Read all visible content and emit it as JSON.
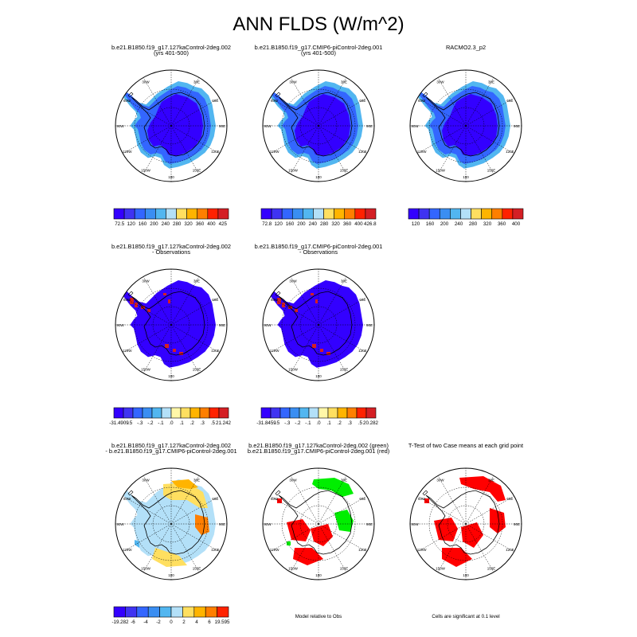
{
  "figure": {
    "title": "ANN FLDS (W/m^2)"
  },
  "colors": {
    "mean_palette": [
      "#3300ff",
      "#3f33f2",
      "#3366ff",
      "#3a8ef2",
      "#52b6f0",
      "#b3e0f8",
      "#ffdf60",
      "#ffb400",
      "#ff7f00",
      "#ff2200",
      "#d41f24"
    ],
    "diff_palette": [
      "#3300ff",
      "#3f33f2",
      "#3366ff",
      "#3a8ef2",
      "#52b6f0",
      "#b3e0f8",
      "#fff7a8",
      "#ffdf60",
      "#ffb400",
      "#ff7f00",
      "#ff2200",
      "#d41f24"
    ],
    "significant_green": "#00ee00",
    "significant_red": "#ff0000",
    "land_outline": "#000000"
  },
  "map_labels": {
    "lon_labels": [
      "30W",
      "30E",
      "60W",
      "60E",
      "90W",
      "90E",
      "120W",
      "120E",
      "150W",
      "150E",
      "180"
    ]
  },
  "chart_data": [
    {
      "type": "heatmap",
      "title": "b.e21.B1850.f19_g17.127kaControl-2deg.002",
      "subtitle": "(yrs 401-500)",
      "colorbar": {
        "ticks": [
          "72.5",
          "120",
          "160",
          "200",
          "240",
          "280",
          "320",
          "360",
          "400",
          "425"
        ]
      },
      "region_colors": [
        "#3300ff",
        "#3366ff",
        "#52b6f0"
      ]
    },
    {
      "type": "heatmap",
      "title": "b.e21.B1850.f19_g17.CMIP6-piControl-2deg.001",
      "subtitle": "(yrs 401-500)",
      "colorbar": {
        "ticks": [
          "72.8",
          "120",
          "160",
          "200",
          "240",
          "280",
          "320",
          "360",
          "400",
          "426.8"
        ]
      },
      "region_colors": [
        "#3300ff",
        "#3366ff",
        "#52b6f0"
      ]
    },
    {
      "type": "heatmap",
      "title": "RACMO2.3_p2",
      "subtitle": "",
      "colorbar": {
        "ticks": [
          "120",
          "160",
          "200",
          "240",
          "280",
          "320",
          "360",
          "400"
        ]
      },
      "region_colors": [
        "#3300ff",
        "#3366ff",
        "#52b6f0"
      ]
    },
    {
      "type": "heatmap",
      "title": "b.e21.B1850.f19_g17.127kaControl-2deg.002",
      "subtitle": "- Observations",
      "colorbar": {
        "ticks": [
          "-31.4909",
          "-.5",
          "-.3",
          "-.2",
          "-.1",
          ".0",
          ".1",
          ".2",
          ".3",
          ".5",
          "21.242"
        ]
      },
      "region_colors": [
        "#3300ff",
        "#d41f24"
      ]
    },
    {
      "type": "heatmap",
      "title": "b.e21.B1850.f19_g17.CMIP6-piControl-2deg.001",
      "subtitle": "- Observations",
      "colorbar": {
        "ticks": [
          "-31.8459",
          "-.5",
          "-.3",
          "-.2",
          "-.1",
          ".0",
          ".1",
          ".2",
          ".3",
          ".5",
          "20.282"
        ]
      },
      "region_colors": [
        "#3300ff",
        "#d41f24"
      ]
    },
    {
      "type": "heatmap",
      "title": "b.e21.B1850.f19_g17.127kaControl-2deg.002",
      "subtitle": "- b.e21.B1850.f19_g17.CMIP6-piControl-2deg.001",
      "colorbar": {
        "ticks": [
          "-19.282",
          "-6",
          "-4",
          "-2",
          "0",
          "2",
          "4",
          "6",
          "19.595"
        ]
      },
      "region_colors": [
        "#b3e0f8",
        "#ffdf60",
        "#ffb400",
        "#ff7f00",
        "#52b6f0"
      ]
    },
    {
      "type": "heatmap",
      "title": "b.e21.B1850.f19_g17.127kaControl-2deg.002 (green)",
      "subtitle": "b.e21.B1850.f19_g17.CMIP6-piControl-2deg.001 (red)",
      "footnote": "Model relative to Obs",
      "region_colors": [
        "#00ee00",
        "#ff0000"
      ]
    },
    {
      "type": "heatmap",
      "title": "T-Test of two Case means at each grid point",
      "subtitle": "",
      "footnote": "Cells are significant at 0.1 level",
      "region_colors": [
        "#ff0000"
      ]
    }
  ]
}
